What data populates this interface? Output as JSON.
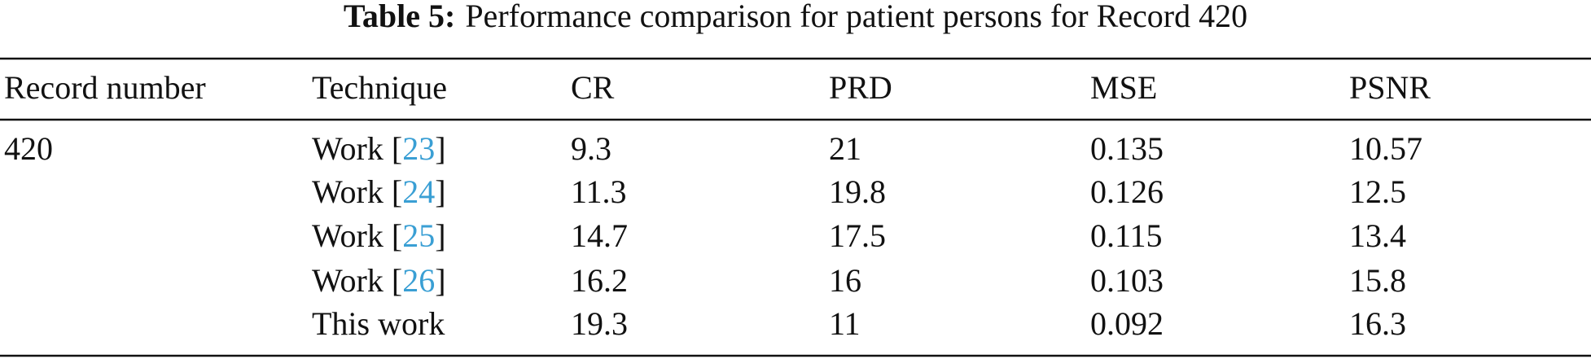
{
  "table": {
    "caption": {
      "label": "Table 5:",
      "text": "Performance comparison for patient persons for Record 420"
    },
    "header": [
      "Record number",
      "Technique",
      "CR",
      "PRD",
      "MSE",
      "PSNR"
    ],
    "rows": [
      [
        "420",
        [
          "Work [",
          "23",
          "]"
        ],
        "9.3",
        "21",
        "0.135",
        "10.57"
      ],
      [
        null,
        [
          "Work [",
          "24",
          "]"
        ],
        "11.3",
        "19.8",
        "0.126",
        "12.5"
      ],
      [
        null,
        [
          "Work [",
          "25",
          "]"
        ],
        "14.7",
        "17.5",
        "0.115",
        "13.4"
      ],
      [
        null,
        [
          "Work [",
          "26",
          "]"
        ],
        "16.2",
        "16",
        "0.103",
        "15.8"
      ],
      [
        null,
        [
          "This work"
        ],
        "19.3",
        "11",
        "0.092",
        "16.3"
      ]
    ]
  }
}
